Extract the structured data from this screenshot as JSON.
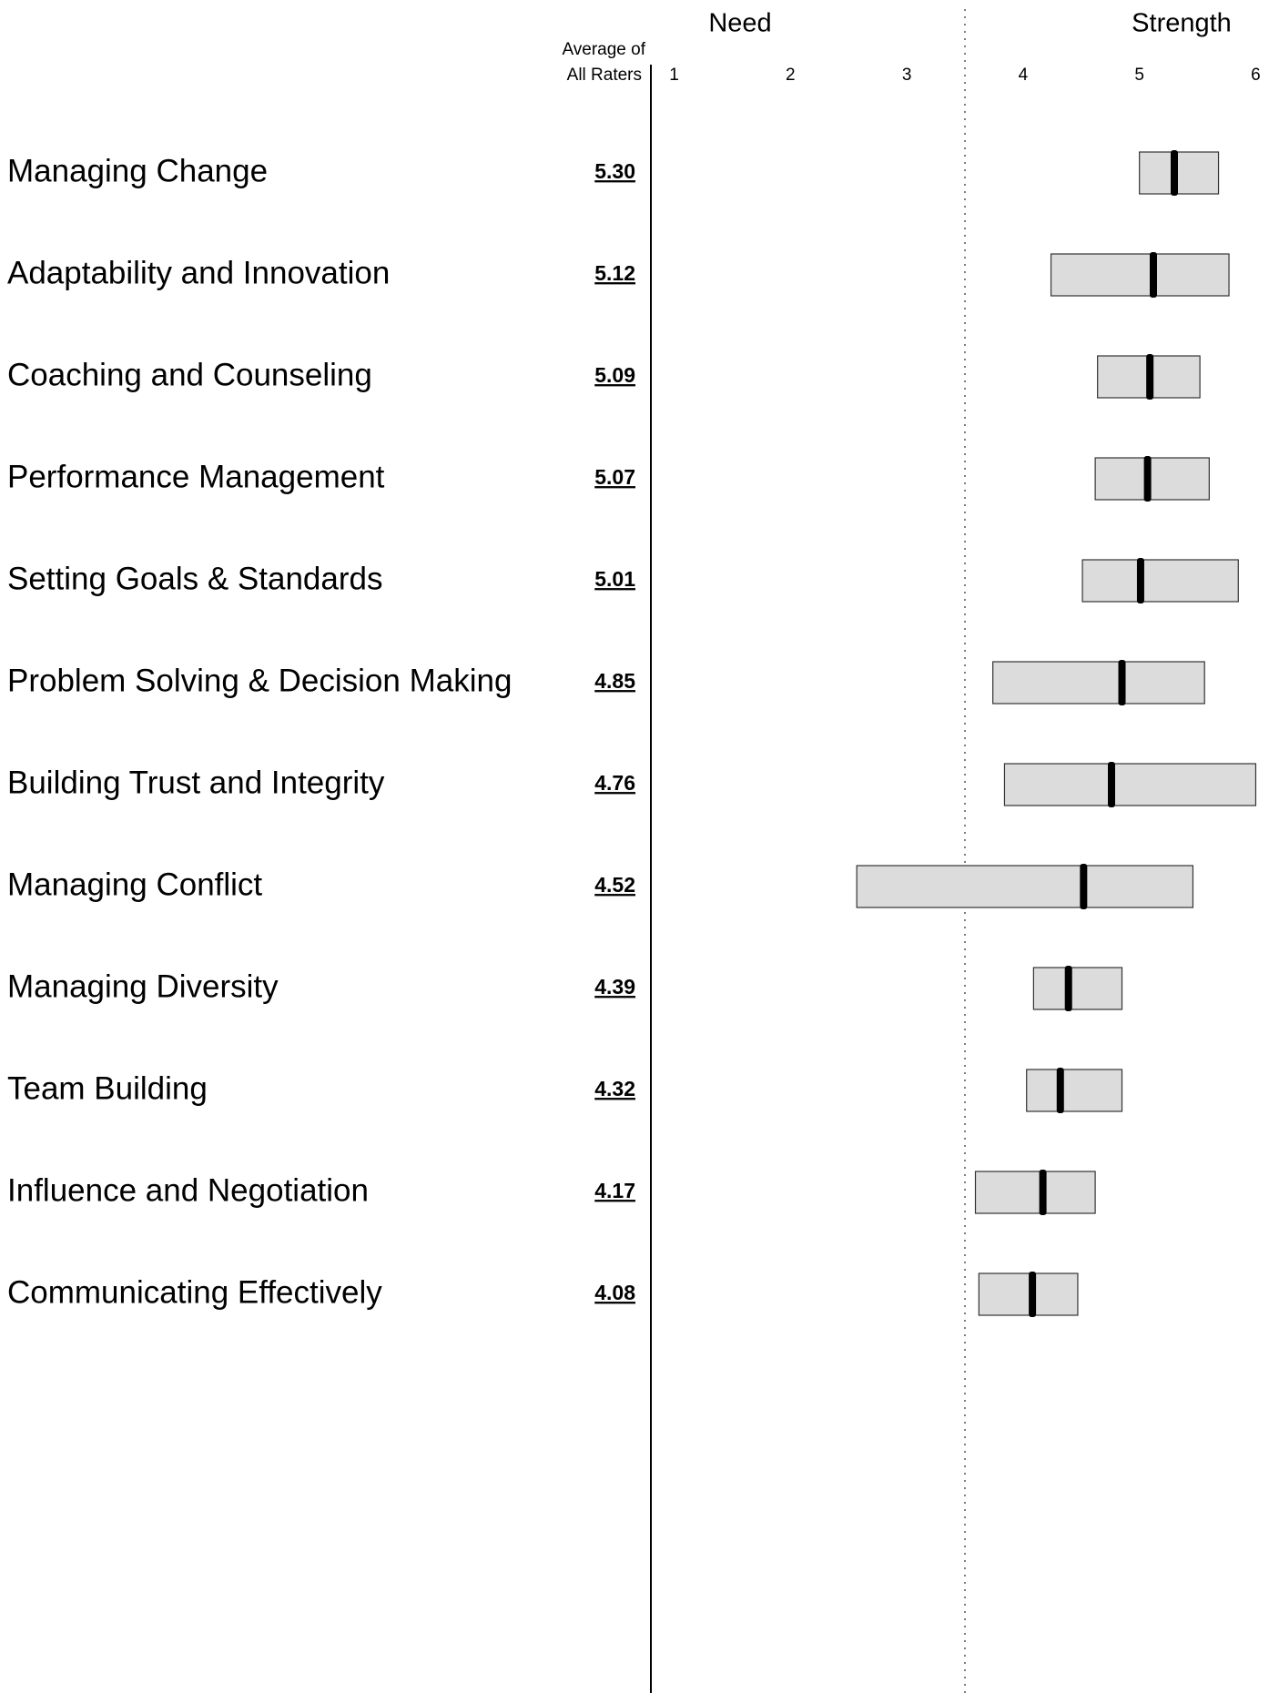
{
  "chart_data": {
    "type": "range-bar",
    "column_header": [
      "Average of",
      "All Raters"
    ],
    "region_labels": [
      "Need",
      "Strength"
    ],
    "divider": 3.5,
    "categories": [
      "Managing Change",
      "Adaptability and Innovation",
      "Coaching and Counseling",
      "Performance Management",
      "Setting Goals & Standards",
      "Problem Solving & Decision Making",
      "Building Trust and Integrity",
      "Managing Conflict",
      "Managing Diversity",
      "Team Building",
      "Influence and Negotiation",
      "Communicating Effectively"
    ],
    "values": [
      5.3,
      5.12,
      5.09,
      5.07,
      5.01,
      4.85,
      4.76,
      4.52,
      4.39,
      4.32,
      4.17,
      4.08
    ],
    "value_labels": [
      "5.30",
      "5.12",
      "5.09",
      "5.07",
      "5.01",
      "4.85",
      "4.76",
      "4.52",
      "4.39",
      "4.32",
      "4.17",
      "4.08"
    ],
    "low": [
      5.0,
      4.24,
      4.64,
      4.62,
      4.51,
      3.74,
      3.84,
      2.57,
      4.09,
      4.03,
      3.59,
      3.62
    ],
    "high": [
      5.68,
      5.77,
      5.52,
      5.6,
      5.85,
      5.56,
      6.0,
      5.46,
      4.85,
      4.85,
      4.62,
      4.47
    ],
    "bar_color": "#dcdcdc",
    "marker_color": "#000000",
    "xlim": [
      0.8,
      6.2
    ],
    "xticks": [
      1,
      2,
      3,
      4,
      5,
      6
    ]
  }
}
